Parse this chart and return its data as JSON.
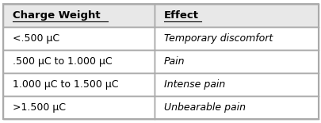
{
  "headers": [
    "Charge Weight",
    "Effect"
  ],
  "rows": [
    [
      "<.500 μC",
      "Temporary discomfort"
    ],
    [
      ".500 μC to 1.000 μC",
      "Pain"
    ],
    [
      "1.000 μC to 1.500 μC",
      "Intense pain"
    ],
    [
      ">1.500 μC",
      "Unbearable pain"
    ]
  ],
  "col_split": 0.48,
  "header_bg": "#e8e8e8",
  "row_bg": "#ffffff",
  "border_color": "#aaaaaa",
  "text_color": "#000000",
  "header_fontsize": 9.5,
  "row_fontsize": 9.0,
  "fig_bg": "#ffffff"
}
